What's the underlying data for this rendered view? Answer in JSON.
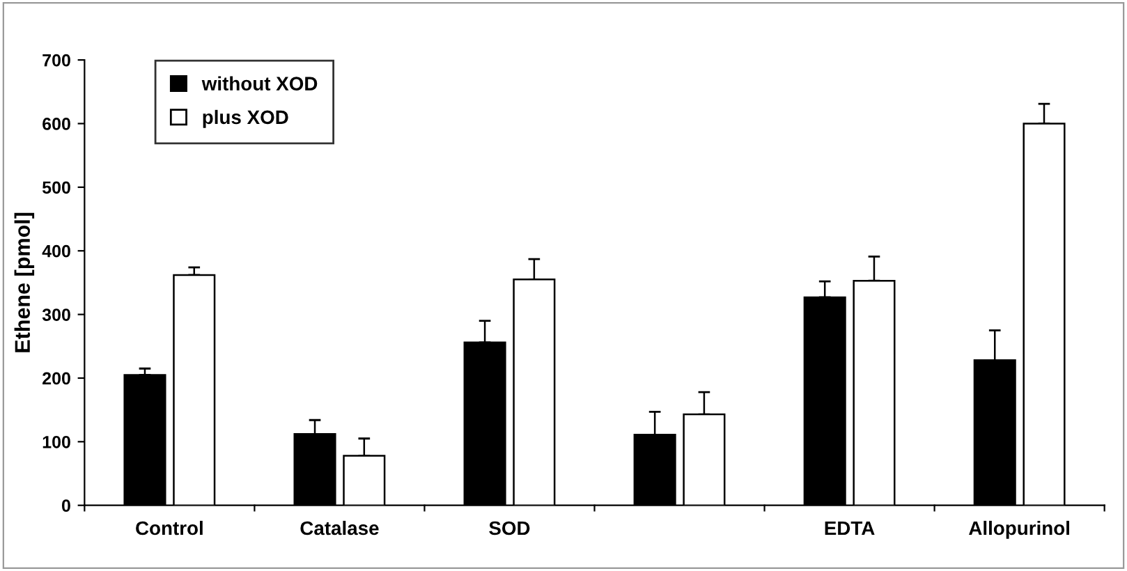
{
  "chart_data": {
    "type": "bar",
    "ylabel": "Ethene [pmol]",
    "categories": [
      "Control",
      "Catalase",
      "SOD",
      null,
      "EDTA",
      "Allopurinol"
    ],
    "series": [
      {
        "name": "without XOD",
        "color": "#000000",
        "values": [
          205,
          112,
          256,
          111,
          327,
          228
        ],
        "errors": [
          [
            205,
            215
          ],
          [
            112,
            134
          ],
          [
            256,
            290
          ],
          [
            111,
            147
          ],
          [
            327,
            352
          ],
          [
            228,
            275
          ]
        ]
      },
      {
        "name": "plus XOD",
        "color": "#ffffff",
        "values": [
          362,
          78,
          355,
          143,
          353,
          600
        ],
        "errors": [
          [
            362,
            374
          ],
          [
            78,
            105
          ],
          [
            355,
            387
          ],
          [
            143,
            178
          ],
          [
            353,
            391
          ],
          [
            600,
            631
          ]
        ]
      }
    ],
    "ylim": [
      0,
      700
    ],
    "yticks": [
      0,
      100,
      200,
      300,
      400,
      500,
      600,
      700
    ],
    "grid": false,
    "legend": "top left"
  }
}
